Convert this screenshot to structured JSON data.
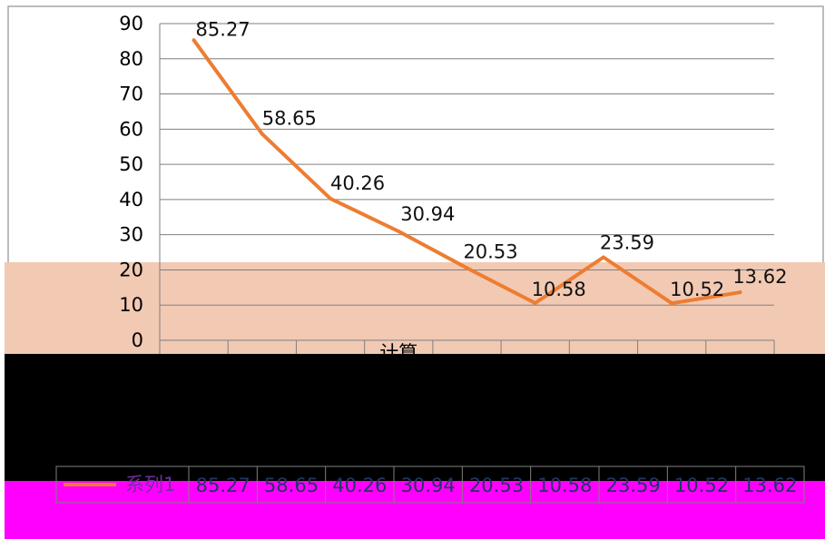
{
  "chart_data": {
    "type": "line",
    "title": "",
    "xlabel": "",
    "ylabel": "",
    "ylim": [
      0,
      90
    ],
    "yticks": [
      "90",
      "80",
      "70",
      "60",
      "50",
      "40",
      "30",
      "20",
      "10",
      "0"
    ],
    "categories": [
      "",
      "",
      "",
      "",
      "",
      "",
      "",
      "",
      ""
    ],
    "series": [
      {
        "name": "系列1",
        "values": [
          85.27,
          58.65,
          40.26,
          30.94,
          20.53,
          10.58,
          23.59,
          10.52,
          13.62
        ],
        "labels": [
          "85.27",
          "58.65",
          "40.26",
          "30.94",
          "20.53",
          "10.58",
          "23.59",
          "10.52",
          "13.62"
        ],
        "color": "#ed7d31"
      }
    ],
    "grid": true,
    "legend": "data-table-below",
    "partial_category_text": "计算"
  },
  "colors": {
    "band_peach": "#f2c9b3",
    "band_black": "#000000",
    "band_magenta": "#ff00ff",
    "grid": "#7f7f7f",
    "frame": "#a6a6a6"
  }
}
